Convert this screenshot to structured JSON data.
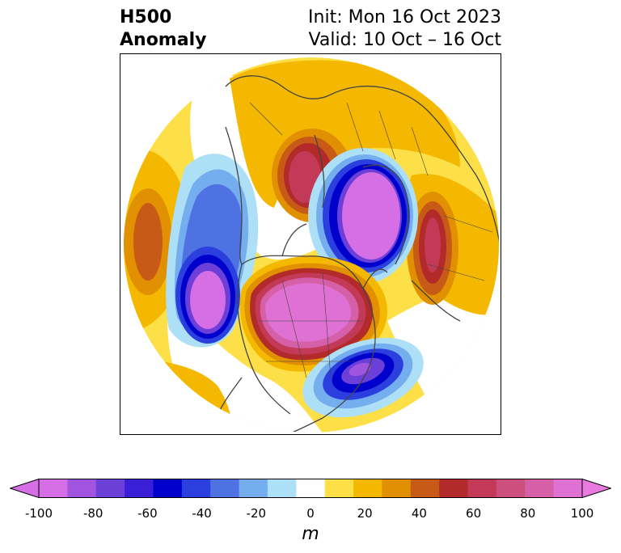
{
  "title": {
    "left_line1": "H500",
    "left_line2": "Anomaly",
    "right_line1": "Init: Mon 16 Oct 2023",
    "right_line2": "Valid: 10 Oct – 16 Oct"
  },
  "colorbar": {
    "units": "m",
    "ticks": [
      "-100",
      "-80",
      "-60",
      "-40",
      "-20",
      "0",
      "20",
      "40",
      "60",
      "80",
      "100"
    ],
    "levels": [
      -100,
      -90,
      -80,
      -70,
      -60,
      -50,
      -40,
      -30,
      -20,
      -10,
      10,
      20,
      30,
      40,
      50,
      60,
      70,
      80,
      90,
      100
    ],
    "colors": [
      "#d66ee6",
      "#a154e0",
      "#6b3fd8",
      "#3a1fd6",
      "#0000cd",
      "#2b3fde",
      "#4f72e3",
      "#75aeef",
      "#ade0f7",
      "#ffffff",
      "#fde047",
      "#f5b800",
      "#e09000",
      "#c85a17",
      "#b22a2a",
      "#c23a58",
      "#cc4f7e",
      "#d660a8",
      "#e071d4"
    ],
    "under_color": "#d66ee6",
    "over_color": "#e97ae0"
  },
  "map": {
    "projection": "north-polar-stereographic",
    "anomaly_centers": [
      {
        "region": "central-north-america",
        "value": 100
      },
      {
        "region": "northeast-pacific",
        "value": -100
      },
      {
        "region": "arctic-siberia",
        "value": -100
      },
      {
        "region": "western-atlantic",
        "value": -70
      },
      {
        "region": "northern-europe",
        "value": 60
      },
      {
        "region": "western-russia",
        "value": 60
      },
      {
        "region": "central-pacific",
        "value": 40
      },
      {
        "region": "western-pacific",
        "value": 30
      }
    ]
  }
}
